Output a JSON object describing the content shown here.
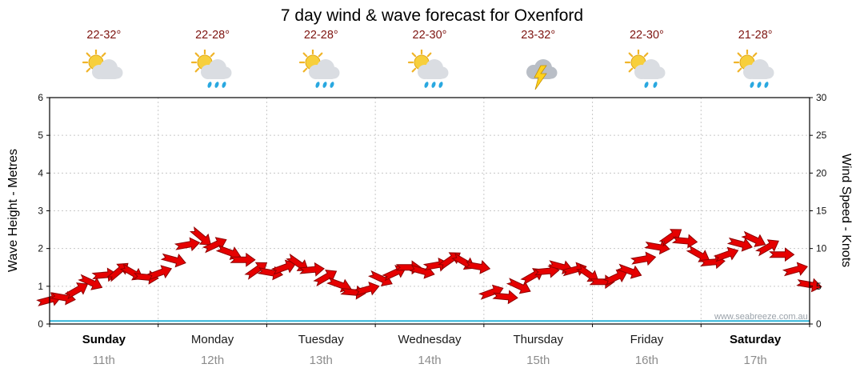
{
  "title": "7 day wind & wave forecast for Oxenford",
  "watermark": "www.seabreeze.com.au",
  "axes": {
    "left_label": "Wave Height - Metres",
    "right_label": "Wind Speed - Knots",
    "left_ticks": [
      0,
      1,
      2,
      3,
      4,
      5,
      6
    ],
    "right_ticks": [
      0,
      5,
      10,
      15,
      20,
      25,
      30
    ]
  },
  "days": [
    {
      "name": "Sunday",
      "date": "11th",
      "temp": "22-32°",
      "icon": "partly-cloudy",
      "bold": true
    },
    {
      "name": "Monday",
      "date": "12th",
      "temp": "22-28°",
      "icon": "showers",
      "bold": false
    },
    {
      "name": "Tuesday",
      "date": "13th",
      "temp": "22-28°",
      "icon": "showers",
      "bold": false
    },
    {
      "name": "Wednesday",
      "date": "14th",
      "temp": "22-30°",
      "icon": "showers",
      "bold": false
    },
    {
      "name": "Thursday",
      "date": "15th",
      "temp": "23-32°",
      "icon": "thunderstorm",
      "bold": false
    },
    {
      "name": "Friday",
      "date": "16th",
      "temp": "22-30°",
      "icon": "light-showers",
      "bold": false
    },
    {
      "name": "Saturday",
      "date": "17th",
      "temp": "21-28°",
      "icon": "showers",
      "bold": true
    }
  ],
  "chart_data": {
    "type": "line",
    "title": "7 day wind & wave forecast for Oxenford",
    "categories": [
      "Sunday 11th",
      "Monday 12th",
      "Tuesday 13th",
      "Wednesday 14th",
      "Thursday 15th",
      "Friday 16th",
      "Saturday 17th"
    ],
    "interval_hours": 3,
    "ylabel_left": "Wave Height - Metres",
    "ylabel_right": "Wind Speed - Knots",
    "ylim_left": [
      0,
      6
    ],
    "ylim_right": [
      0,
      30
    ],
    "grid": true,
    "series": [
      {
        "name": "Wind Speed (knots)",
        "color": "#e60000",
        "values": [
          3.2,
          3.5,
          4.5,
          5.5,
          6.5,
          7.0,
          6.8,
          6.2,
          6.8,
          8.5,
          10.5,
          11.5,
          10.5,
          9.5,
          8.5,
          7.2,
          6.8,
          7.5,
          8.0,
          7.2,
          6.2,
          5.2,
          4.2,
          4.6,
          6.0,
          6.8,
          7.5,
          7.0,
          7.8,
          8.5,
          8.2,
          7.6,
          4.2,
          3.6,
          5.0,
          6.4,
          7.0,
          7.6,
          7.2,
          6.6,
          5.6,
          6.2,
          7.0,
          8.6,
          10.2,
          11.6,
          11.0,
          9.2,
          8.2,
          9.2,
          10.6,
          11.2,
          10.2,
          9.2,
          7.2,
          5.2
        ],
        "directions_deg": [
          75,
          100,
          60,
          115,
          85,
          50,
          120,
          95,
          70,
          105,
          80,
          130,
          65,
          110,
          90,
          55,
          100,
          70,
          125,
          85,
          60,
          110,
          95,
          75,
          115,
          65,
          90,
          105,
          80,
          55,
          120,
          100,
          70,
          95,
          115,
          60,
          85,
          105,
          75,
          125,
          90,
          65,
          110,
          80,
          100,
          55,
          95,
          120,
          85,
          70,
          105,
          115,
          60,
          90,
          75,
          100
        ]
      },
      {
        "name": "Wave Height (metres)",
        "color": "#2fb4d9",
        "values": [
          0.08,
          0.08,
          0.08,
          0.08,
          0.08,
          0.08,
          0.08,
          0.08
        ]
      }
    ]
  }
}
